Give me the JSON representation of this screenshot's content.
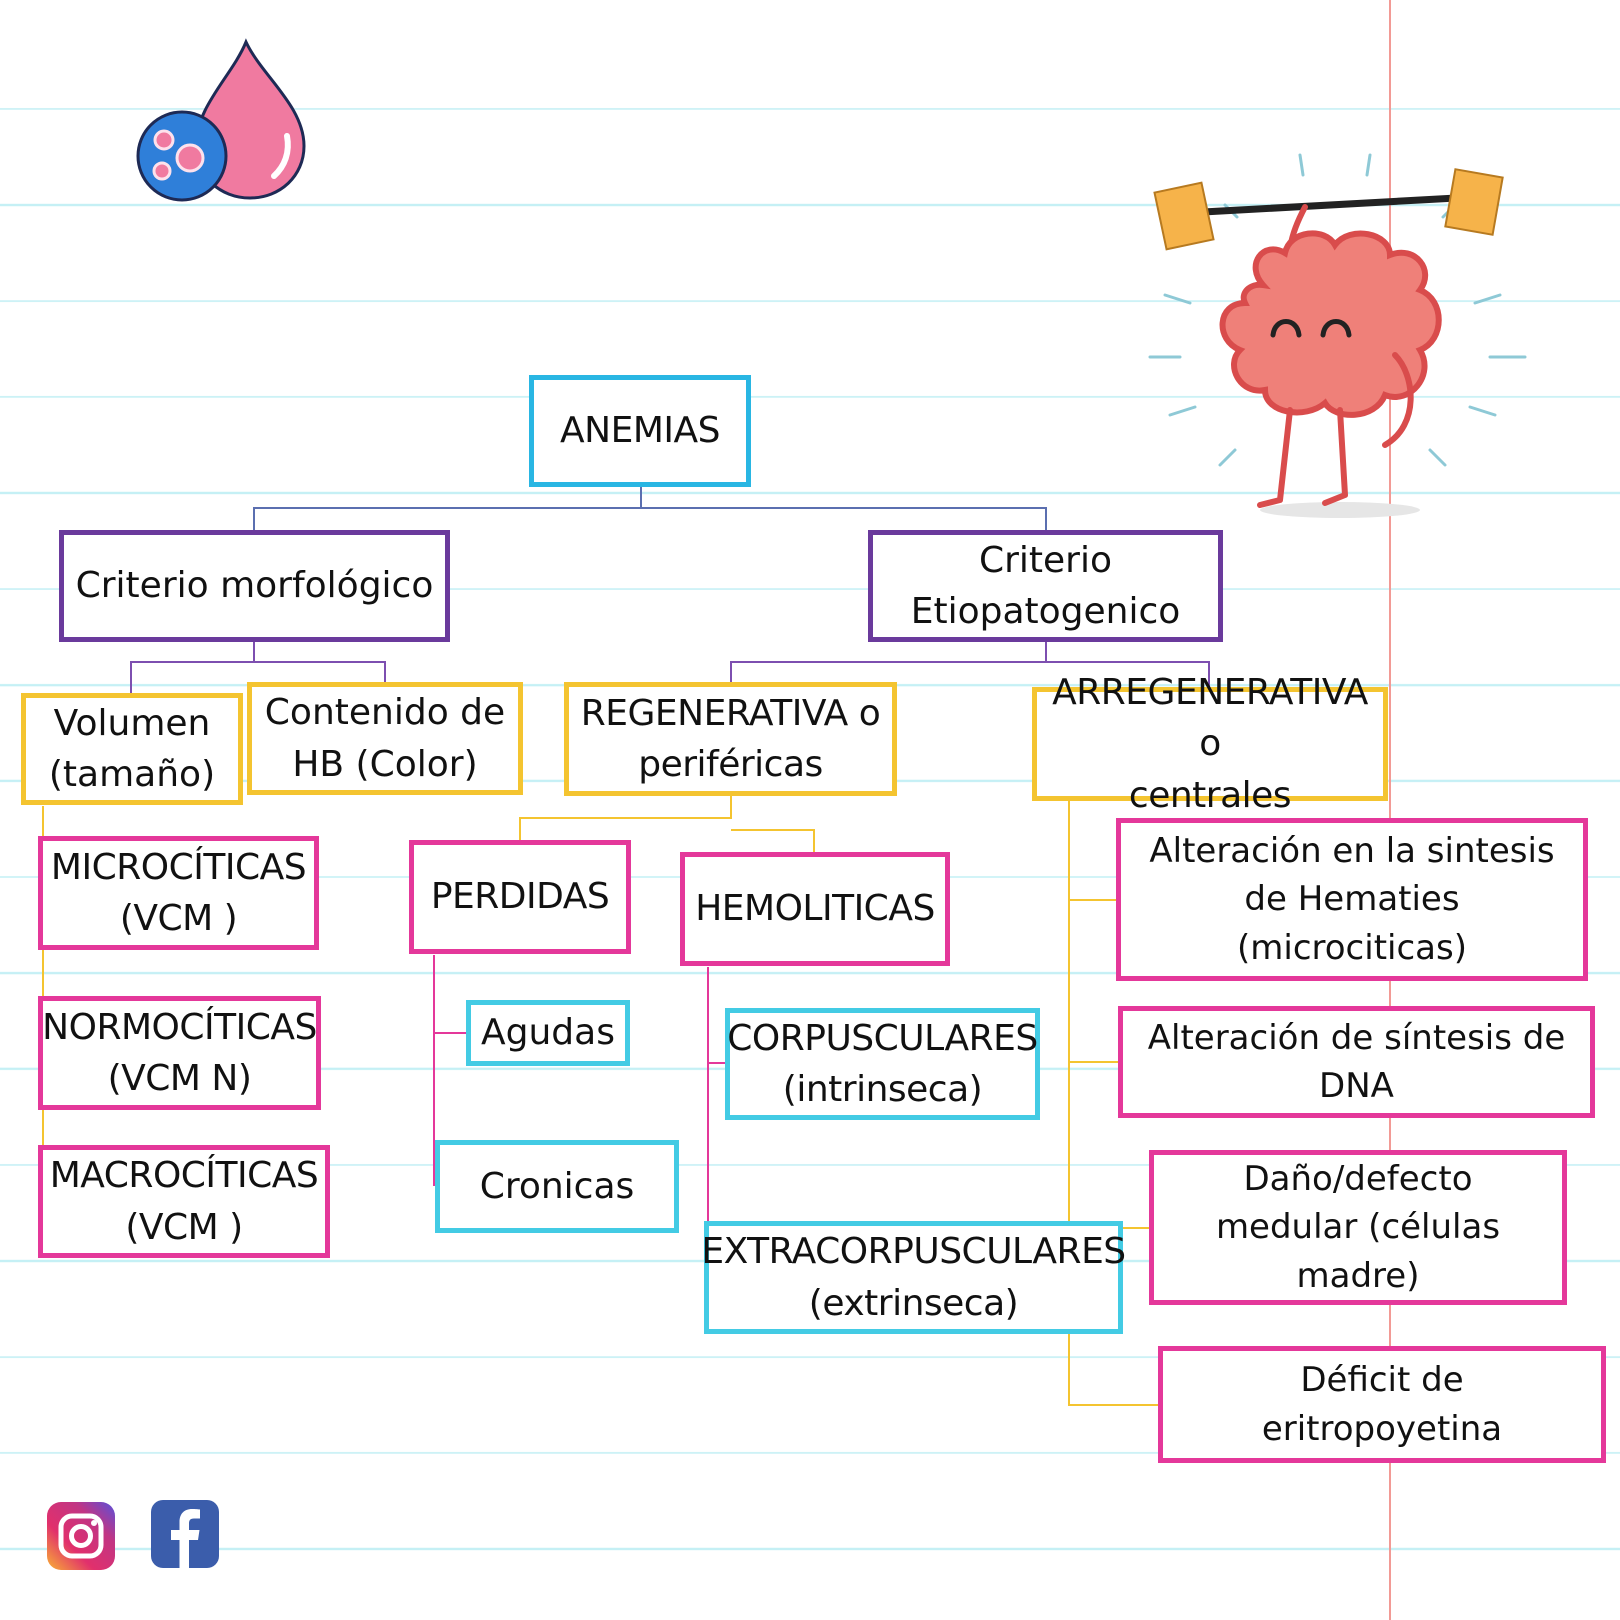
{
  "colors": {
    "root_border": "#29b6e3",
    "criteria_border": "#6a3a9c",
    "category_border": "#f4c430",
    "leaf_border": "#e4389a",
    "subleaf_border": "#43cbe4",
    "notebook_lines": "#c5f0f5",
    "margin_line": "#f29a95"
  },
  "icons": {
    "blood_drop": "blood-drop-cell-icon",
    "brain": "brain-weightlifting-icon",
    "instagram": "instagram-icon",
    "facebook": "facebook-icon"
  },
  "diagram": {
    "root": "ANEMIAS",
    "morfologico": {
      "title": "Criterio morfológico",
      "volumen": "Volumen\n(tamaño)",
      "contenido": "Contenido de\nHB (Color)",
      "microciticas": "MICROCÍTICAS\n(VCM    )",
      "normociticas": "NORMOCÍTICAS\n(VCM N)",
      "macrociticas": "MACROCÍTICAS\n(VCM    )"
    },
    "etiopatogenico": {
      "title": "Criterio\nEtiopatogenico",
      "regenerativa": "REGENERATIVA o\nperiféricas",
      "perdidas": "PERDIDAS",
      "agudas": "Agudas",
      "cronicas": "Cronicas",
      "hemoliticas": "HEMOLITICAS",
      "corpusculares": "CORPUSCULARES\n(intrinseca)",
      "extracorpusculares": "EXTRACORPUSCULARES\n(extrinseca)",
      "arregenerativa": "ARREGENERATIVA o\ncentrales",
      "alteracion_hematies": "Alteración en la sintesis\nde Hematies\n(microciticas)",
      "alteracion_dna": "Alteración de síntesis de\nDNA",
      "dano_medular": "Daño/defecto\nmedular (células\nmadre)",
      "deficit_epo": "Déficit de\neritropoyetina"
    }
  }
}
